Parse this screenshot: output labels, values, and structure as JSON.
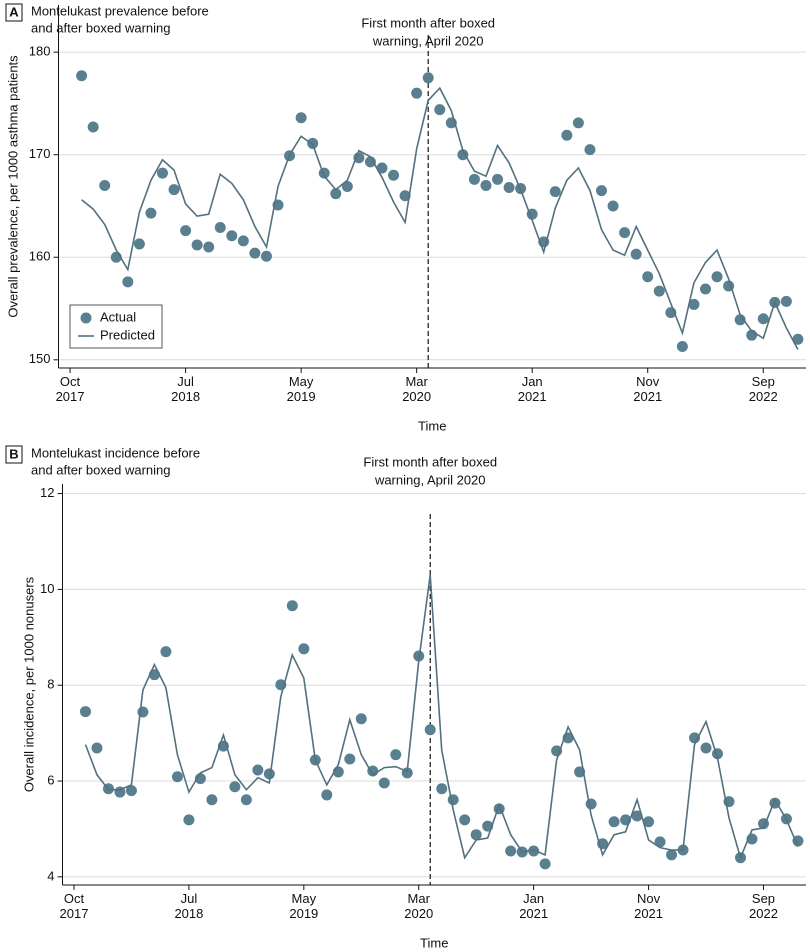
{
  "chart_data": [
    {
      "type": "line",
      "panel": "A",
      "title": [
        "Montelukast prevalence before",
        "and after boxed warning"
      ],
      "annotation": [
        "First month after boxed",
        "warning, April 2020"
      ],
      "event_x": 31,
      "xlabel": "Time",
      "ylabel": "Overall prevalence, per 1000 asthma patients",
      "x": [
        1,
        2,
        3,
        4,
        5,
        6,
        7,
        8,
        9,
        10,
        11,
        12,
        13,
        14,
        15,
        16,
        17,
        18,
        19,
        20,
        21,
        22,
        23,
        24,
        25,
        26,
        27,
        28,
        29,
        30,
        31,
        32,
        33,
        34,
        35,
        36,
        37,
        38,
        39,
        40,
        41,
        42,
        43,
        44,
        45,
        46,
        47,
        48,
        49,
        50,
        51,
        52,
        53,
        54,
        55,
        56,
        57,
        58,
        59,
        60,
        61,
        62,
        63
      ],
      "xlim": [
        -1,
        63.7
      ],
      "xticks": [
        {
          "value": 0,
          "label": "Oct 2017"
        },
        {
          "value": 10,
          "label": "Jul 2018"
        },
        {
          "value": 20,
          "label": "May 2019"
        },
        {
          "value": 30,
          "label": "Mar 2020"
        },
        {
          "value": 40,
          "label": "Jan 2021"
        },
        {
          "value": 50,
          "label": "Nov 2021"
        },
        {
          "value": 60,
          "label": "Sep 2022"
        }
      ],
      "ylim": [
        149.2,
        184.6
      ],
      "yticks": [
        150,
        160,
        170,
        180
      ],
      "grid": true,
      "legend": "lower left",
      "series": [
        {
          "name": "Actual",
          "mode": "markers",
          "color": "#5a8090",
          "values": [
            177.7,
            172.7,
            167.0,
            160.0,
            157.6,
            161.3,
            164.3,
            168.2,
            166.6,
            162.6,
            161.2,
            161.0,
            162.9,
            162.1,
            161.6,
            160.4,
            160.1,
            165.1,
            169.9,
            173.6,
            171.1,
            168.2,
            166.2,
            166.9,
            169.7,
            169.3,
            168.7,
            168.0,
            166.0,
            176.0,
            177.5,
            174.4,
            173.1,
            170.0,
            167.6,
            167.0,
            167.6,
            166.8,
            166.7,
            164.2,
            161.5,
            166.4,
            171.9,
            173.1,
            170.5,
            166.5,
            165.0,
            162.4,
            160.3,
            158.1,
            156.7,
            154.6,
            151.3,
            155.4,
            156.9,
            158.1,
            157.2,
            153.9,
            152.4,
            154.0,
            155.6,
            155.7,
            152.0
          ]
        },
        {
          "name": "Predicted",
          "mode": "lines",
          "color": "#52717f",
          "values": [
            165.6,
            164.7,
            163.2,
            160.7,
            158.8,
            164.4,
            167.5,
            169.5,
            168.5,
            165.2,
            164.0,
            164.2,
            168.1,
            167.2,
            165.6,
            163.0,
            161.0,
            166.9,
            170.0,
            171.8,
            171.0,
            167.9,
            166.6,
            167.5,
            170.4,
            169.8,
            167.8,
            165.4,
            163.4,
            170.6,
            175.3,
            176.5,
            174.3,
            170.4,
            168.4,
            167.9,
            170.9,
            169.2,
            166.6,
            163.6,
            160.5,
            164.8,
            167.5,
            168.7,
            166.5,
            162.7,
            160.7,
            160.2,
            163.0,
            160.7,
            158.4,
            155.5,
            152.6,
            157.5,
            159.5,
            160.7,
            157.9,
            154.4,
            152.8,
            152.1,
            155.6,
            153.1,
            151.0
          ]
        }
      ]
    },
    {
      "type": "line",
      "panel": "B",
      "title": [
        "Montelukast incidence before",
        "and after boxed warning"
      ],
      "annotation": [
        "First month after boxed",
        "warning, April 2020"
      ],
      "event_x": 31,
      "xlabel": "Time",
      "ylabel": "Overall incidence, per 1000 nonusers",
      "x": [
        1,
        2,
        3,
        4,
        5,
        6,
        7,
        8,
        9,
        10,
        11,
        12,
        13,
        14,
        15,
        16,
        17,
        18,
        19,
        20,
        21,
        22,
        23,
        24,
        25,
        26,
        27,
        28,
        29,
        30,
        31,
        32,
        33,
        34,
        35,
        36,
        37,
        38,
        39,
        40,
        41,
        42,
        43,
        44,
        45,
        46,
        47,
        48,
        49,
        50,
        51,
        52,
        53,
        54,
        55,
        56,
        57,
        58,
        59,
        60,
        61,
        62,
        63
      ],
      "xlim": [
        -1,
        63.7
      ],
      "xticks": [
        {
          "value": 0,
          "label": "Oct 2017"
        },
        {
          "value": 10,
          "label": "Jul 2018"
        },
        {
          "value": 20,
          "label": "May 2019"
        },
        {
          "value": 30,
          "label": "Mar 2020"
        },
        {
          "value": 40,
          "label": "Jan 2021"
        },
        {
          "value": 50,
          "label": "Nov 2021"
        },
        {
          "value": 60,
          "label": "Sep 2022"
        }
      ],
      "ylim": [
        3.83,
        12.2
      ],
      "yticks": [
        4,
        6,
        8,
        10,
        12
      ],
      "grid": true,
      "series": [
        {
          "name": "Actual",
          "mode": "markers",
          "color": "#5a8090",
          "values": [
            7.45,
            6.69,
            5.84,
            5.77,
            5.8,
            7.44,
            8.22,
            8.7,
            6.09,
            5.19,
            6.05,
            5.61,
            6.73,
            5.88,
            5.61,
            6.23,
            6.15,
            8.01,
            9.66,
            8.76,
            6.44,
            5.71,
            6.19,
            6.46,
            7.3,
            6.21,
            5.96,
            6.55,
            6.17,
            8.61,
            7.07,
            5.84,
            5.61,
            5.19,
            4.88,
            5.06,
            5.42,
            4.54,
            4.52,
            4.54,
            4.27,
            6.63,
            6.9,
            6.19,
            5.52,
            4.69,
            5.15,
            5.19,
            5.27,
            5.15,
            4.73,
            4.46,
            4.56,
            6.9,
            6.69,
            6.57,
            5.57,
            4.4,
            4.79,
            5.11,
            5.54,
            5.21,
            4.75
          ]
        },
        {
          "name": "Predicted",
          "mode": "lines",
          "color": "#52717f",
          "values": [
            6.76,
            6.13,
            5.82,
            5.82,
            5.92,
            7.9,
            8.43,
            7.95,
            6.55,
            5.77,
            6.17,
            6.28,
            6.96,
            6.13,
            5.82,
            6.07,
            5.96,
            7.76,
            8.63,
            8.15,
            6.44,
            5.92,
            6.34,
            7.28,
            6.55,
            6.13,
            6.28,
            6.3,
            6.2,
            8.5,
            10.3,
            6.65,
            5.4,
            4.4,
            4.77,
            4.81,
            5.5,
            4.88,
            4.52,
            4.56,
            4.46,
            6.44,
            7.13,
            6.65,
            5.29,
            4.46,
            4.88,
            4.94,
            5.61,
            4.77,
            4.61,
            4.56,
            4.56,
            6.76,
            7.24,
            6.48,
            5.23,
            4.4,
            4.98,
            5.02,
            5.61,
            5.19,
            4.63
          ]
        }
      ]
    }
  ]
}
